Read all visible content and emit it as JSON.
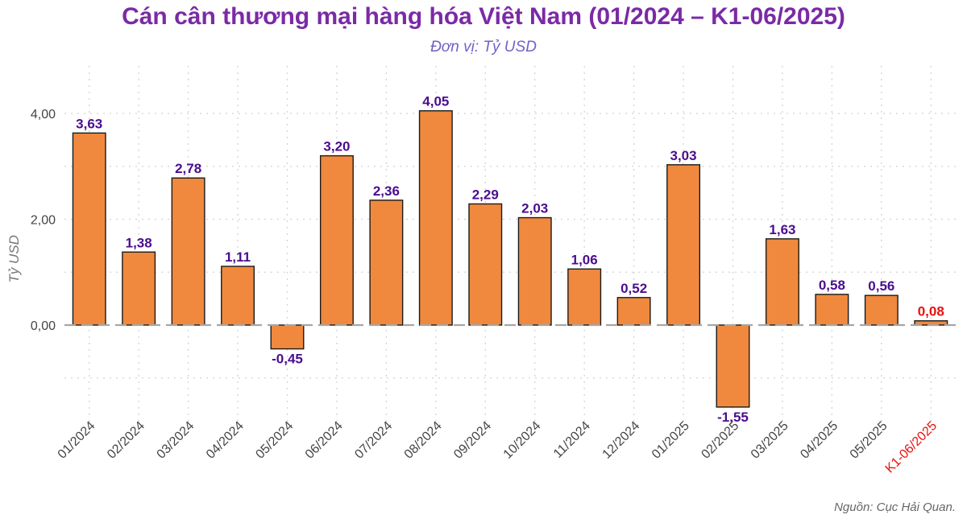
{
  "title": "Cán cân thương mại hàng hóa Việt Nam (01/2024 – K1-06/2025)",
  "subtitle": "Đơn vị: Tỷ USD",
  "source": "Nguồn: Cục Hải Quan.",
  "colors": {
    "bar": "#f0893d",
    "bar_border": "#1a1a1a",
    "value_label": "#4a0d8f",
    "highlight": "#e8100e",
    "title": "#7b2aa6",
    "subtitle": "#6f63c9",
    "zero_line": "#a6a6a6",
    "grid": "#d2d2d2",
    "tick_text": "#444444"
  },
  "chart_data": {
    "type": "bar",
    "title": "Cán cân thương mại hàng hóa Việt Nam (01/2024 – K1-06/2025)",
    "subtitle": "Đơn vị: Tỷ USD",
    "xlabel": "",
    "ylabel": "Tỷ USD",
    "categories": [
      "01/2024",
      "02/2024",
      "03/2024",
      "04/2024",
      "05/2024",
      "06/2024",
      "07/2024",
      "08/2024",
      "09/2024",
      "10/2024",
      "11/2024",
      "12/2024",
      "01/2025",
      "02/2025",
      "03/2025",
      "04/2025",
      "05/2025",
      "K1-06/2025"
    ],
    "values": [
      3.63,
      1.38,
      2.78,
      1.11,
      -0.45,
      3.2,
      2.36,
      4.05,
      2.29,
      2.03,
      1.06,
      0.52,
      3.03,
      -1.55,
      1.63,
      0.58,
      0.56,
      0.08
    ],
    "value_labels": [
      "3,63",
      "1,38",
      "2,78",
      "1,11",
      "-0,45",
      "3,20",
      "2,36",
      "4,05",
      "2,29",
      "2,03",
      "1,06",
      "0,52",
      "3,03",
      "-1,55",
      "1,63",
      "0,58",
      "0,56",
      "0,08"
    ],
    "highlight_category": "K1-06/2025",
    "ylim": [
      -1.9,
      4.9
    ],
    "yticks": [
      0,
      2,
      4
    ],
    "ytick_labels": [
      "0,00",
      "2,00",
      "4,00"
    ],
    "grid": true,
    "zero_line": "dashed"
  }
}
